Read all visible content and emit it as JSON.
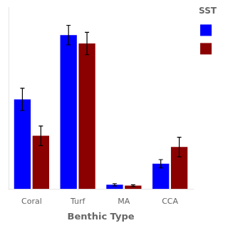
{
  "chart_data": {
    "type": "bar",
    "categories": [
      "Coral",
      "Turf",
      "MA",
      "CCA"
    ],
    "series": [
      {
        "color": "#0000FF",
        "values": [
          32,
          55,
          1.5,
          9
        ],
        "errors": [
          4,
          3.5,
          0.4,
          1.5
        ]
      },
      {
        "color": "#8B0000",
        "values": [
          19,
          52,
          1.2,
          15
        ],
        "errors": [
          3.5,
          4,
          0.3,
          3.5
        ]
      }
    ],
    "xlabel": "Benthic Type",
    "legend_title": "SST",
    "legend": "right",
    "ylim": [
      0,
      65
    ],
    "tick_labels": "x",
    "grid": false
  }
}
